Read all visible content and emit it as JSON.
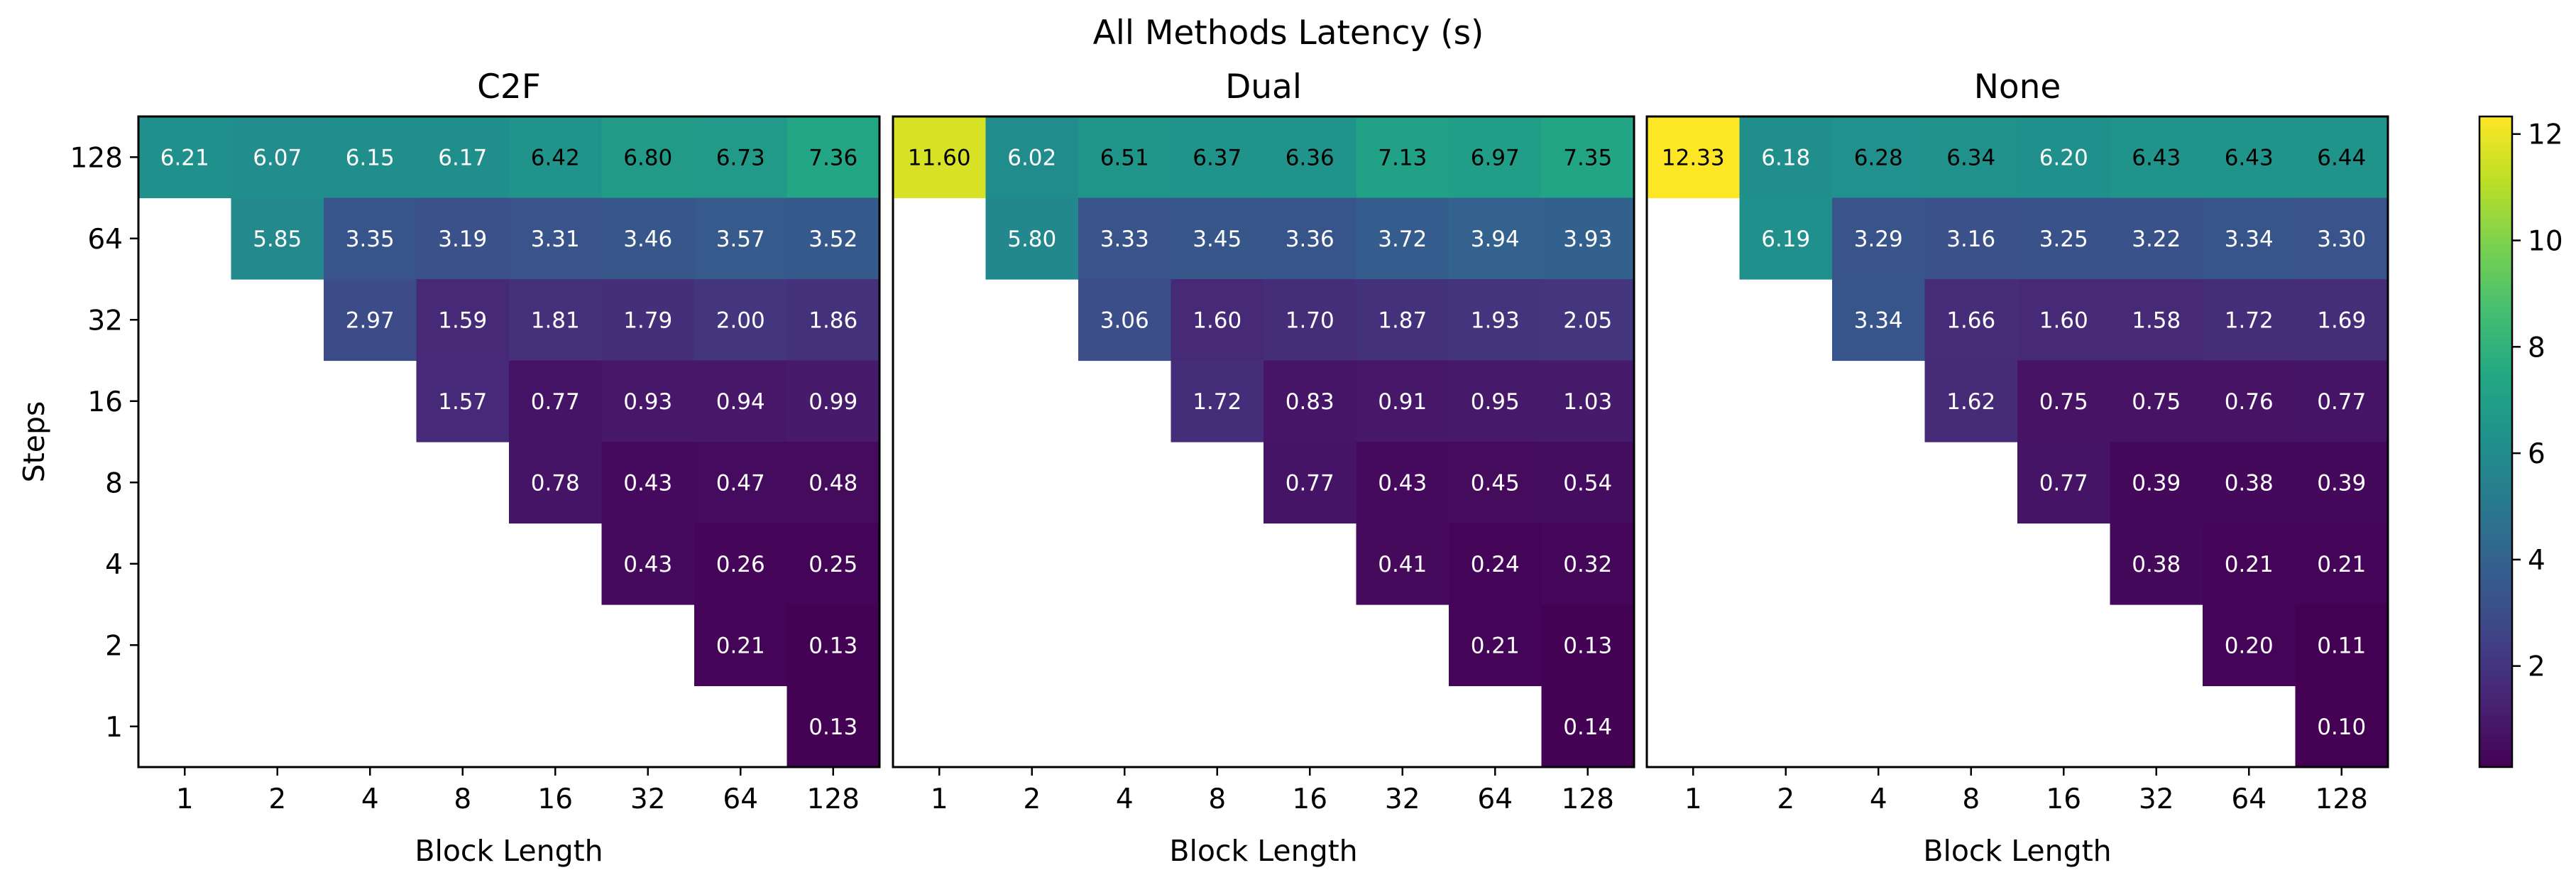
{
  "figure": {
    "title": "All Methods Latency (s)"
  },
  "chart_data": [
    {
      "type": "heatmap",
      "title": "C2F",
      "xlabel": "Block Length",
      "ylabel": "Steps",
      "x_categories": [
        "1",
        "2",
        "4",
        "8",
        "16",
        "32",
        "64",
        "128"
      ],
      "y_categories": [
        "128",
        "64",
        "32",
        "16",
        "8",
        "4",
        "2",
        "1"
      ],
      "values": [
        [
          6.21,
          6.07,
          6.15,
          6.17,
          6.42,
          6.8,
          6.73,
          7.36
        ],
        [
          null,
          5.85,
          3.35,
          3.19,
          3.31,
          3.46,
          3.57,
          3.52
        ],
        [
          null,
          null,
          2.97,
          1.59,
          1.81,
          1.79,
          2.0,
          1.86
        ],
        [
          null,
          null,
          null,
          1.57,
          0.77,
          0.93,
          0.94,
          0.99
        ],
        [
          null,
          null,
          null,
          null,
          0.78,
          0.43,
          0.47,
          0.48
        ],
        [
          null,
          null,
          null,
          null,
          null,
          0.43,
          0.26,
          0.25
        ],
        [
          null,
          null,
          null,
          null,
          null,
          null,
          0.21,
          0.13
        ],
        [
          null,
          null,
          null,
          null,
          null,
          null,
          null,
          0.13
        ]
      ]
    },
    {
      "type": "heatmap",
      "title": "Dual",
      "xlabel": "Block Length",
      "ylabel": "",
      "x_categories": [
        "1",
        "2",
        "4",
        "8",
        "16",
        "32",
        "64",
        "128"
      ],
      "y_categories": [
        "128",
        "64",
        "32",
        "16",
        "8",
        "4",
        "2",
        "1"
      ],
      "values": [
        [
          11.6,
          6.02,
          6.51,
          6.37,
          6.36,
          7.13,
          6.97,
          7.35
        ],
        [
          null,
          5.8,
          3.33,
          3.45,
          3.36,
          3.72,
          3.94,
          3.93
        ],
        [
          null,
          null,
          3.06,
          1.6,
          1.7,
          1.87,
          1.93,
          2.05
        ],
        [
          null,
          null,
          null,
          1.72,
          0.83,
          0.91,
          0.95,
          1.03
        ],
        [
          null,
          null,
          null,
          null,
          0.77,
          0.43,
          0.45,
          0.54
        ],
        [
          null,
          null,
          null,
          null,
          null,
          0.41,
          0.24,
          0.32
        ],
        [
          null,
          null,
          null,
          null,
          null,
          null,
          0.21,
          0.13
        ],
        [
          null,
          null,
          null,
          null,
          null,
          null,
          null,
          0.14
        ]
      ]
    },
    {
      "type": "heatmap",
      "title": "None",
      "xlabel": "Block Length",
      "ylabel": "",
      "x_categories": [
        "1",
        "2",
        "4",
        "8",
        "16",
        "32",
        "64",
        "128"
      ],
      "y_categories": [
        "128",
        "64",
        "32",
        "16",
        "8",
        "4",
        "2",
        "1"
      ],
      "values": [
        [
          12.33,
          6.18,
          6.28,
          6.34,
          6.2,
          6.43,
          6.43,
          6.44
        ],
        [
          null,
          6.19,
          3.29,
          3.16,
          3.25,
          3.22,
          3.34,
          3.3
        ],
        [
          null,
          null,
          3.34,
          1.66,
          1.6,
          1.58,
          1.72,
          1.69
        ],
        [
          null,
          null,
          null,
          1.62,
          0.75,
          0.75,
          0.76,
          0.77
        ],
        [
          null,
          null,
          null,
          null,
          0.77,
          0.39,
          0.38,
          0.39
        ],
        [
          null,
          null,
          null,
          null,
          null,
          0.38,
          0.21,
          0.21
        ],
        [
          null,
          null,
          null,
          null,
          null,
          null,
          0.2,
          0.11
        ],
        [
          null,
          null,
          null,
          null,
          null,
          null,
          null,
          0.1
        ]
      ]
    }
  ],
  "colorbar": {
    "colormap": "viridis",
    "vmin": 0.1,
    "vmax": 12.33,
    "ticks": [
      2,
      4,
      6,
      8,
      10,
      12
    ]
  }
}
